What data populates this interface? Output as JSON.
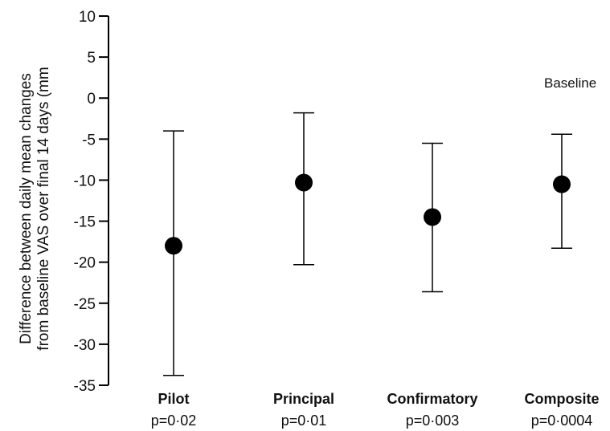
{
  "chart_data": {
    "type": "scatter",
    "title": "",
    "ylabel_line1": "Difference between daily mean changes",
    "ylabel_line2": "from baseline VAS over final 14 days (mm",
    "ylim": [
      -35,
      10
    ],
    "yticks": [
      10,
      5,
      0,
      -5,
      -10,
      -15,
      -20,
      -25,
      -30,
      -35
    ],
    "reference_label": "Baseline",
    "categories": [
      "Pilot",
      "Principal",
      "Confirmatory",
      "Composite"
    ],
    "p_values": [
      "p=0·02",
      "p=0·01",
      "p=0·003",
      "p=0·0004"
    ],
    "values": [
      -18.0,
      -10.3,
      -14.5,
      -10.5
    ],
    "ci_upper": [
      -4.0,
      -1.8,
      -5.5,
      -4.4
    ],
    "ci_lower": [
      -33.8,
      -20.3,
      -23.6,
      -18.3
    ]
  },
  "colors": {
    "marker": "#000000",
    "axis": "#000000"
  }
}
